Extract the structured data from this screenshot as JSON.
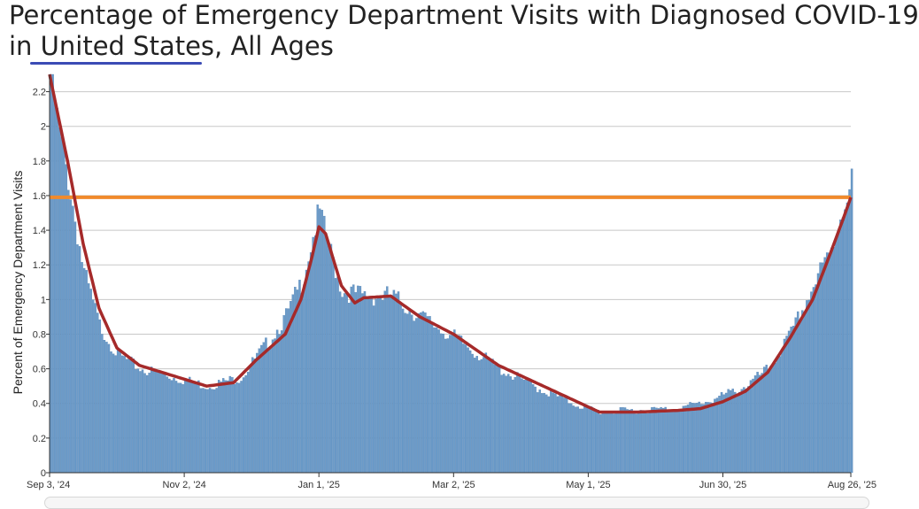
{
  "header": {
    "title_line1": "Percentage of Emergency Department Visits with Diagnosed COVID-19",
    "title_prefix": "in ",
    "location": "United States",
    "title_suffix": ", All Ages"
  },
  "colors": {
    "bars": "#6b9bc9",
    "bar_edge": "#4f7fb0",
    "trend": "#a52a2a",
    "threshold": "#f08a2c",
    "grid": "#c8c8c8",
    "underline": "#3b4bb5"
  },
  "chart_data": {
    "type": "bar",
    "ylabel": "Percent of Emergency Department Visits",
    "ylim": [
      0,
      2.3
    ],
    "yticks": [
      "0",
      "0.2",
      "0.4",
      "0.6",
      "0.8",
      "1",
      "1.2",
      "1.4",
      "1.6",
      "1.8",
      "2",
      "2.2"
    ],
    "xticks": [
      "Sep 3, '24",
      "Nov 2, '24",
      "Jan 1, '25",
      "Mar 2, '25",
      "May 1, '25",
      "Jun 30, '25",
      "Aug 26, '25"
    ],
    "xtick_days": [
      0,
      60,
      120,
      180,
      240,
      300,
      357
    ],
    "threshold": 1.59,
    "grid": true,
    "bar_anchors": [
      [
        0,
        2.3
      ],
      [
        4,
        1.95
      ],
      [
        8,
        1.7
      ],
      [
        15,
        1.15
      ],
      [
        22,
        0.85
      ],
      [
        30,
        0.68
      ],
      [
        40,
        0.6
      ],
      [
        55,
        0.55
      ],
      [
        70,
        0.5
      ],
      [
        85,
        0.55
      ],
      [
        95,
        0.72
      ],
      [
        105,
        0.9
      ],
      [
        112,
        1.1
      ],
      [
        118,
        1.42
      ],
      [
        120,
        1.5
      ],
      [
        123,
        1.35
      ],
      [
        130,
        1.05
      ],
      [
        140,
        1.02
      ],
      [
        152,
        1.02
      ],
      [
        165,
        0.9
      ],
      [
        180,
        0.78
      ],
      [
        200,
        0.6
      ],
      [
        220,
        0.47
      ],
      [
        235,
        0.39
      ],
      [
        245,
        0.35
      ],
      [
        260,
        0.36
      ],
      [
        280,
        0.37
      ],
      [
        295,
        0.42
      ],
      [
        310,
        0.5
      ],
      [
        320,
        0.6
      ],
      [
        330,
        0.8
      ],
      [
        340,
        1.08
      ],
      [
        348,
        1.28
      ],
      [
        354,
        1.58
      ],
      [
        357,
        1.68
      ]
    ],
    "trend_anchors": [
      [
        0,
        2.3
      ],
      [
        4,
        2.05
      ],
      [
        8,
        1.8
      ],
      [
        15,
        1.32
      ],
      [
        22,
        0.95
      ],
      [
        30,
        0.72
      ],
      [
        40,
        0.62
      ],
      [
        55,
        0.56
      ],
      [
        70,
        0.5
      ],
      [
        82,
        0.52
      ],
      [
        92,
        0.65
      ],
      [
        105,
        0.8
      ],
      [
        112,
        1.0
      ],
      [
        117,
        1.25
      ],
      [
        120,
        1.42
      ],
      [
        123,
        1.38
      ],
      [
        130,
        1.08
      ],
      [
        136,
        0.98
      ],
      [
        140,
        1.01
      ],
      [
        152,
        1.02
      ],
      [
        165,
        0.9
      ],
      [
        180,
        0.8
      ],
      [
        200,
        0.62
      ],
      [
        220,
        0.5
      ],
      [
        235,
        0.41
      ],
      [
        245,
        0.35
      ],
      [
        262,
        0.35
      ],
      [
        280,
        0.36
      ],
      [
        290,
        0.37
      ],
      [
        300,
        0.41
      ],
      [
        310,
        0.47
      ],
      [
        320,
        0.58
      ],
      [
        330,
        0.78
      ],
      [
        340,
        1.0
      ],
      [
        348,
        1.27
      ],
      [
        354,
        1.48
      ],
      [
        357,
        1.59
      ]
    ]
  }
}
